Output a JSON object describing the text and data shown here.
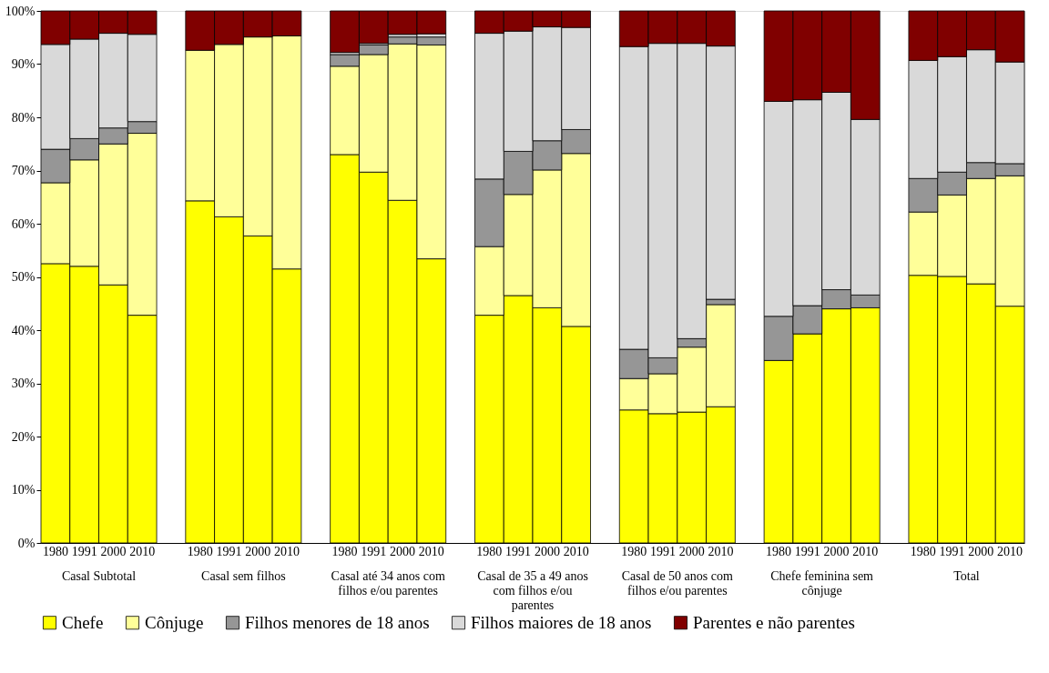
{
  "chart_data": {
    "type": "bar",
    "stacked": true,
    "grid": false,
    "legend": "bottom",
    "categories": [
      "1980",
      "1991",
      "2000",
      "2010",
      null,
      "1980",
      "1991",
      "2000",
      "2010",
      null,
      "1980",
      "1991",
      "2000",
      "2010",
      null,
      "1980",
      "1991",
      "2000",
      "2010",
      null,
      "1980",
      "1991",
      "2000",
      "2010",
      null,
      "1980",
      "1991",
      "2000",
      "2010",
      null,
      "1980",
      "1991",
      "2000",
      "2010"
    ],
    "ylim": [
      0,
      100
    ],
    "yticks": [
      {
        "value": 0,
        "label": "0%"
      },
      {
        "value": 10,
        "label": "10%"
      },
      {
        "value": 20,
        "label": "20%"
      },
      {
        "value": 30,
        "label": "30%"
      },
      {
        "value": 40,
        "label": "40%"
      },
      {
        "value": 50,
        "label": "50%"
      },
      {
        "value": 60,
        "label": "60%"
      },
      {
        "value": 70,
        "label": "70%"
      },
      {
        "value": 80,
        "label": "80%"
      },
      {
        "value": 90,
        "label": "90%"
      },
      {
        "value": 100,
        "label": "100%"
      }
    ],
    "annotations": [
      "Casal Subtotal",
      "Casal sem filhos",
      "Casal até 34 anos com filhos e/ou parentes",
      "Casal de 35 a 49 anos com filhos e/ou parentes",
      "Casal de 50 anos com filhos e/ou parentes",
      "Chefe feminina sem cônjuge",
      "Total"
    ],
    "series": [
      {
        "name": "Chefe",
        "color": "#ffff00",
        "values": [
          52.5,
          52,
          48.5,
          42.8,
          null,
          64.3,
          61.3,
          57.7,
          51.5,
          null,
          73,
          69.7,
          64.4,
          53.4,
          null,
          42.8,
          46.5,
          44.2,
          40.7,
          null,
          25,
          24.3,
          24.6,
          25.6,
          null,
          34.3,
          39.3,
          44,
          44.2,
          null,
          50.3,
          50.1,
          48.7,
          44.5
        ]
      },
      {
        "name": "Cônjuge",
        "color": "#ffff99",
        "values": [
          15.2,
          20,
          26.5,
          34.2,
          null,
          28.3,
          32.4,
          37.4,
          43.8,
          null,
          16.6,
          22.1,
          29.4,
          40.2,
          null,
          12.9,
          19,
          25.9,
          32.5,
          null,
          5.9,
          7.5,
          12.2,
          19.2,
          null,
          null,
          null,
          null,
          null,
          null,
          11.9,
          15.3,
          19.8,
          24.5
        ]
      },
      {
        "name": "Filhos menores de 18 anos",
        "color": "#969696",
        "values": [
          6.3,
          4,
          3,
          2.2,
          null,
          null,
          null,
          null,
          null,
          null,
          2.2,
          1.8,
          1.3,
          1.5,
          null,
          12.7,
          8.1,
          5.5,
          4.5,
          null,
          5.5,
          3,
          1.6,
          1,
          null,
          8.3,
          5.3,
          3.6,
          2.4,
          null,
          6.3,
          4.3,
          3,
          2.3
        ]
      },
      {
        "name": "Filhos maiores de 18 anos",
        "color": "#d9d9d9",
        "values": [
          19.7,
          18.7,
          17.8,
          16.4,
          null,
          null,
          null,
          null,
          null,
          null,
          0.4,
          0.3,
          0.5,
          0.6,
          null,
          27.4,
          22.6,
          21.4,
          19.2,
          null,
          56.9,
          59.1,
          55.5,
          47.6,
          null,
          40.4,
          38.7,
          37.1,
          33,
          null,
          22.2,
          21.7,
          21.2,
          19.1
        ]
      },
      {
        "name": "Parentes e não parentes",
        "color": "#800000",
        "values": [
          6.3,
          5.3,
          4.2,
          4.4,
          null,
          7.4,
          6.3,
          4.9,
          4.7,
          null,
          7.8,
          6.1,
          4.4,
          4.3,
          null,
          4.2,
          3.8,
          3,
          3.1,
          null,
          6.7,
          6.1,
          6.1,
          6.6,
          null,
          17,
          16.7,
          15.3,
          20.4,
          null,
          9.3,
          8.6,
          7.3,
          9.6
        ]
      }
    ]
  }
}
